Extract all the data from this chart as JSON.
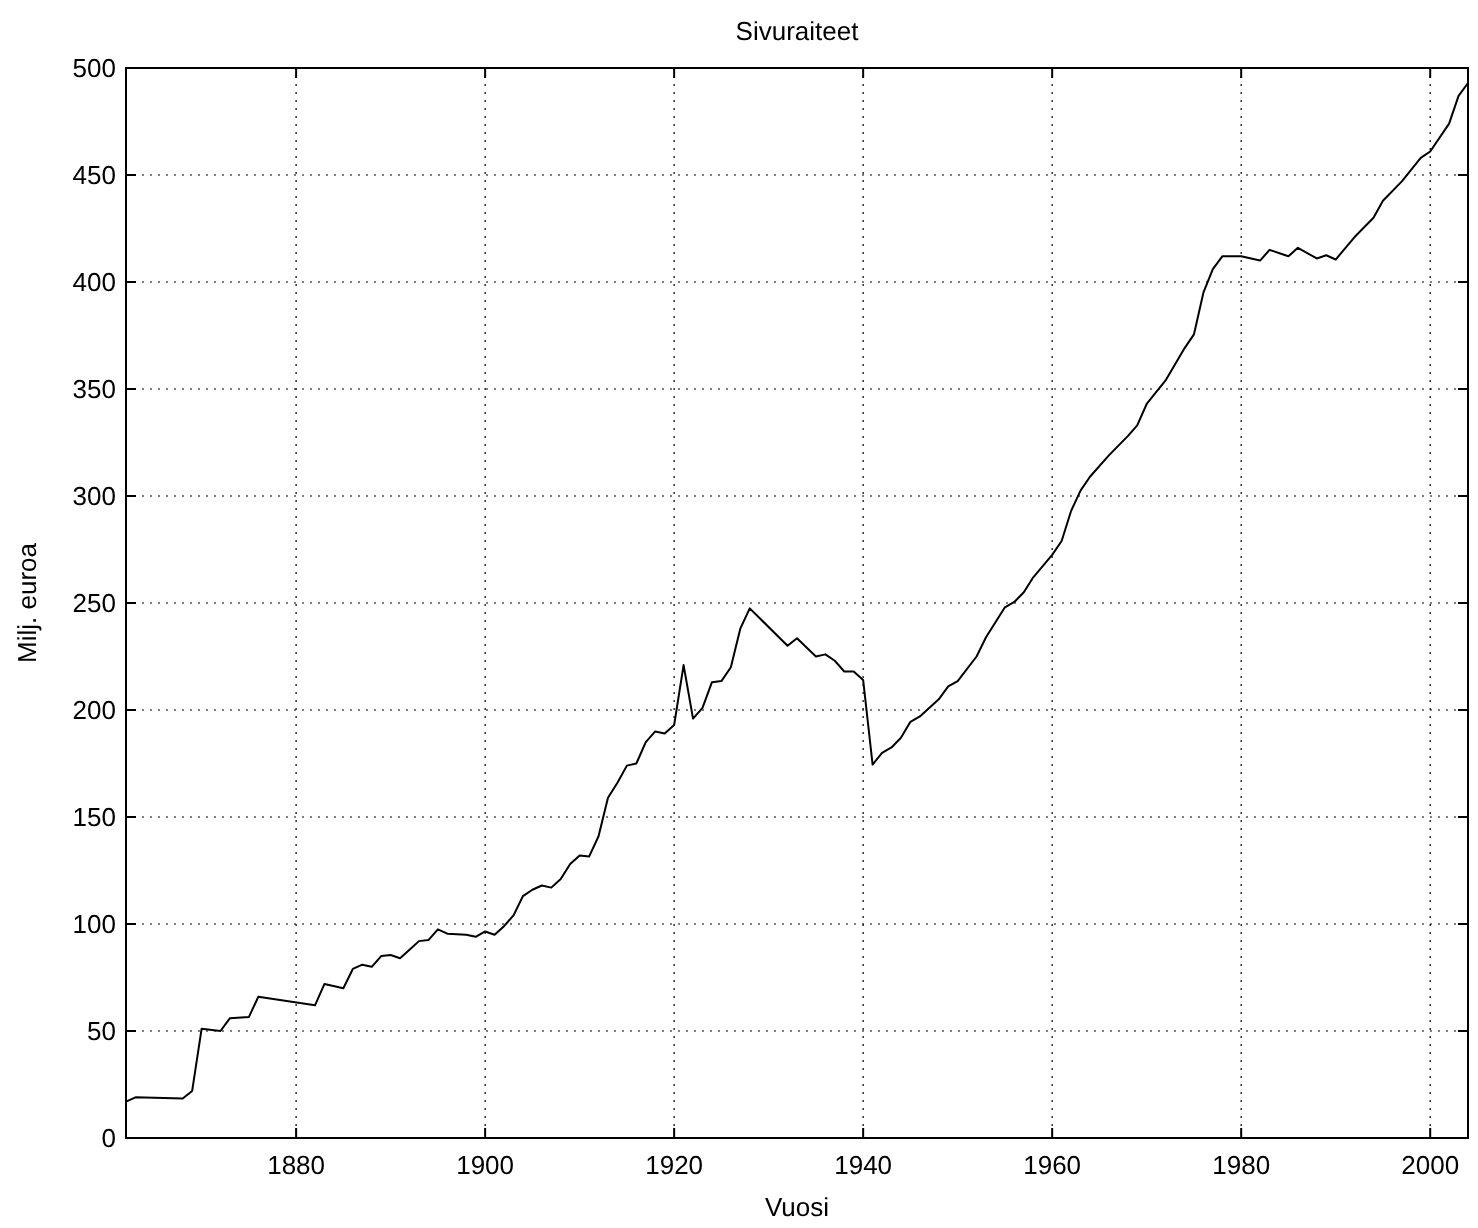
{
  "chart_data": {
    "type": "line",
    "title": "Sivuraiteet",
    "xlabel": "Vuosi",
    "ylabel": "Milj. euroa",
    "x": [
      1862,
      1863,
      1868,
      1869,
      1870,
      1872,
      1873,
      1875,
      1876,
      1882,
      1883,
      1885,
      1886,
      1887,
      1888,
      1889,
      1890,
      1891,
      1892,
      1893,
      1894,
      1895,
      1896,
      1898,
      1899,
      1900,
      1901,
      1902,
      1903,
      1904,
      1905,
      1906,
      1907,
      1908,
      1909,
      1910,
      1911,
      1912,
      1913,
      1914,
      1915,
      1916,
      1917,
      1918,
      1919,
      1920,
      1921,
      1922,
      1923,
      1924,
      1925,
      1926,
      1927,
      1928,
      1932,
      1933,
      1935,
      1936,
      1937,
      1938,
      1939,
      1940,
      1941,
      1942,
      1943,
      1944,
      1945,
      1946,
      1948,
      1949,
      1950,
      1952,
      1953,
      1955,
      1956,
      1957,
      1958,
      1960,
      1961,
      1962,
      1963,
      1964,
      1966,
      1968,
      1969,
      1970,
      1972,
      1974,
      1975,
      1976,
      1977,
      1978,
      1980,
      1982,
      1983,
      1985,
      1986,
      1988,
      1989,
      1990,
      1992,
      1994,
      1995,
      1997,
      1999,
      2000,
      2002,
      2003,
      2004
    ],
    "series": [
      {
        "color": "#000000",
        "values": [
          17,
          19,
          18.5,
          22,
          51,
          50,
          56,
          56.5,
          66,
          62,
          72,
          70,
          79,
          81,
          80,
          85,
          85.5,
          84,
          88,
          92,
          92.5,
          97.5,
          95.5,
          95,
          94,
          96.5,
          95,
          99,
          104,
          113,
          116,
          118,
          117,
          121,
          128,
          132,
          131.5,
          141,
          159,
          166,
          174,
          175,
          185,
          190,
          189,
          193,
          221,
          196,
          201,
          213,
          213.5,
          220,
          238,
          247.5,
          230,
          233.5,
          225,
          226,
          223,
          218,
          218,
          214,
          174.5,
          180,
          182.5,
          187,
          194.5,
          197,
          205,
          211,
          213.5,
          225,
          234,
          248,
          250.5,
          255,
          262,
          272.5,
          279,
          293,
          302.5,
          309,
          319,
          328,
          333,
          343,
          354,
          369,
          375.5,
          395,
          406,
          412,
          412,
          410,
          415,
          412,
          416,
          411,
          412.5,
          410.5,
          421,
          430,
          438,
          447,
          458,
          461,
          474,
          487,
          493
        ]
      }
    ],
    "xlim": [
      1862,
      2004
    ],
    "xticks": [
      1880,
      1900,
      1920,
      1940,
      1960,
      1980,
      2000
    ],
    "ylim": [
      0,
      500
    ],
    "yticks": [
      0,
      50,
      100,
      150,
      200,
      250,
      300,
      350,
      400,
      450,
      500
    ],
    "grid": true,
    "line_style": "solid",
    "marker": "none"
  }
}
